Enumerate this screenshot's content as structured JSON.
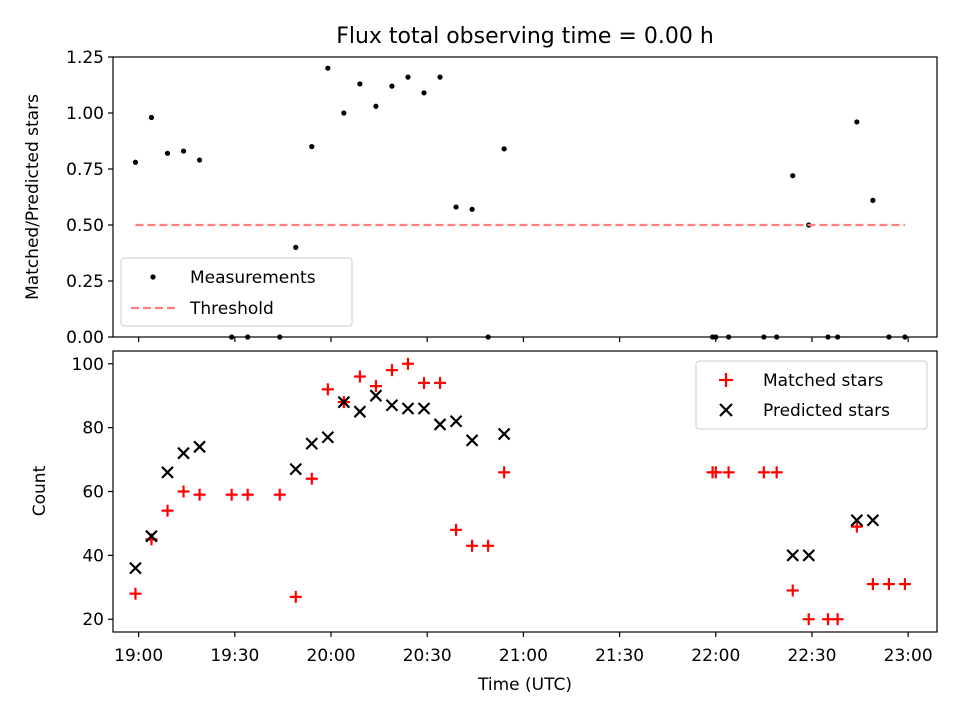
{
  "chart_data": [
    {
      "type": "scatter",
      "title": "Flux total observing time = 0.00 h",
      "ylabel": "Matched/Predicted stars",
      "xlabel": "",
      "xlim": [
        "18:52",
        "23:09"
      ],
      "ylim": [
        0,
        1.25
      ],
      "yticks": [
        "0.00",
        "0.25",
        "0.50",
        "0.75",
        "1.00",
        "1.25"
      ],
      "legend_placement": "lower-left",
      "series": [
        {
          "name": "Measurements",
          "color": "#000000",
          "marker": "dot",
          "points": [
            [
              "18:59",
              0.78
            ],
            [
              "19:04",
              0.98
            ],
            [
              "19:09",
              0.82
            ],
            [
              "19:14",
              0.83
            ],
            [
              "19:19",
              0.79
            ],
            [
              "19:29",
              0.0
            ],
            [
              "19:34",
              0.0
            ],
            [
              "19:44",
              0.0
            ],
            [
              "19:49",
              0.4
            ],
            [
              "19:54",
              0.85
            ],
            [
              "19:59",
              1.2
            ],
            [
              "20:04",
              1.0
            ],
            [
              "20:09",
              1.13
            ],
            [
              "20:14",
              1.03
            ],
            [
              "20:19",
              1.12
            ],
            [
              "20:24",
              1.16
            ],
            [
              "20:29",
              1.09
            ],
            [
              "20:34",
              1.16
            ],
            [
              "20:39",
              0.58
            ],
            [
              "20:44",
              0.57
            ],
            [
              "20:49",
              0.0
            ],
            [
              "20:54",
              0.84
            ],
            [
              "21:59",
              0.0
            ],
            [
              "22:00",
              0.0
            ],
            [
              "22:04",
              0.0
            ],
            [
              "22:15",
              0.0
            ],
            [
              "22:19",
              0.0
            ],
            [
              "22:24",
              0.72
            ],
            [
              "22:29",
              0.5
            ],
            [
              "22:35",
              0.0
            ],
            [
              "22:38",
              0.0
            ],
            [
              "22:44",
              0.96
            ],
            [
              "22:49",
              0.61
            ],
            [
              "22:54",
              0.0
            ],
            [
              "22:59",
              0.0
            ]
          ]
        },
        {
          "name": "Threshold",
          "color": "#ff7f7f",
          "line": "dashed",
          "points": [
            [
              "18:59",
              0.5
            ],
            [
              "22:59",
              0.5
            ]
          ]
        }
      ]
    },
    {
      "type": "scatter",
      "title": "",
      "ylabel": "Count",
      "xlabel": "Time (UTC)",
      "xlim": [
        "18:52",
        "23:09"
      ],
      "ylim": [
        16,
        104
      ],
      "yticks": [
        "20",
        "40",
        "60",
        "80",
        "100"
      ],
      "xticks": [
        "19:00",
        "19:30",
        "20:00",
        "20:30",
        "21:00",
        "21:30",
        "22:00",
        "22:30",
        "23:00"
      ],
      "legend_placement": "top-right",
      "series": [
        {
          "name": "Matched stars",
          "color": "#ff0000",
          "marker": "plus",
          "points": [
            [
              "18:59",
              28
            ],
            [
              "19:04",
              45
            ],
            [
              "19:09",
              54
            ],
            [
              "19:14",
              60
            ],
            [
              "19:19",
              59
            ],
            [
              "19:29",
              59
            ],
            [
              "19:34",
              59
            ],
            [
              "19:44",
              59
            ],
            [
              "19:49",
              27
            ],
            [
              "19:54",
              64
            ],
            [
              "19:59",
              92
            ],
            [
              "20:04",
              88
            ],
            [
              "20:09",
              96
            ],
            [
              "20:14",
              93
            ],
            [
              "20:19",
              98
            ],
            [
              "20:24",
              100
            ],
            [
              "20:29",
              94
            ],
            [
              "20:34",
              94
            ],
            [
              "20:39",
              48
            ],
            [
              "20:44",
              43
            ],
            [
              "20:49",
              43
            ],
            [
              "20:54",
              66
            ],
            [
              "21:59",
              66
            ],
            [
              "22:00",
              66
            ],
            [
              "22:04",
              66
            ],
            [
              "22:15",
              66
            ],
            [
              "22:19",
              66
            ],
            [
              "22:24",
              29
            ],
            [
              "22:29",
              20
            ],
            [
              "22:35",
              20
            ],
            [
              "22:38",
              20
            ],
            [
              "22:44",
              49
            ],
            [
              "22:49",
              31
            ],
            [
              "22:54",
              31
            ],
            [
              "22:59",
              31
            ]
          ]
        },
        {
          "name": "Predicted stars",
          "color": "#000000",
          "marker": "x",
          "points": [
            [
              "18:59",
              36
            ],
            [
              "19:04",
              46
            ],
            [
              "19:09",
              66
            ],
            [
              "19:14",
              72
            ],
            [
              "19:19",
              74
            ],
            [
              "19:49",
              67
            ],
            [
              "19:54",
              75
            ],
            [
              "19:59",
              77
            ],
            [
              "20:04",
              88
            ],
            [
              "20:09",
              85
            ],
            [
              "20:14",
              90
            ],
            [
              "20:19",
              87
            ],
            [
              "20:24",
              86
            ],
            [
              "20:29",
              86
            ],
            [
              "20:34",
              81
            ],
            [
              "20:39",
              82
            ],
            [
              "20:44",
              76
            ],
            [
              "20:54",
              78
            ],
            [
              "22:24",
              40
            ],
            [
              "22:29",
              40
            ],
            [
              "22:44",
              51
            ],
            [
              "22:49",
              51
            ]
          ]
        }
      ]
    }
  ]
}
